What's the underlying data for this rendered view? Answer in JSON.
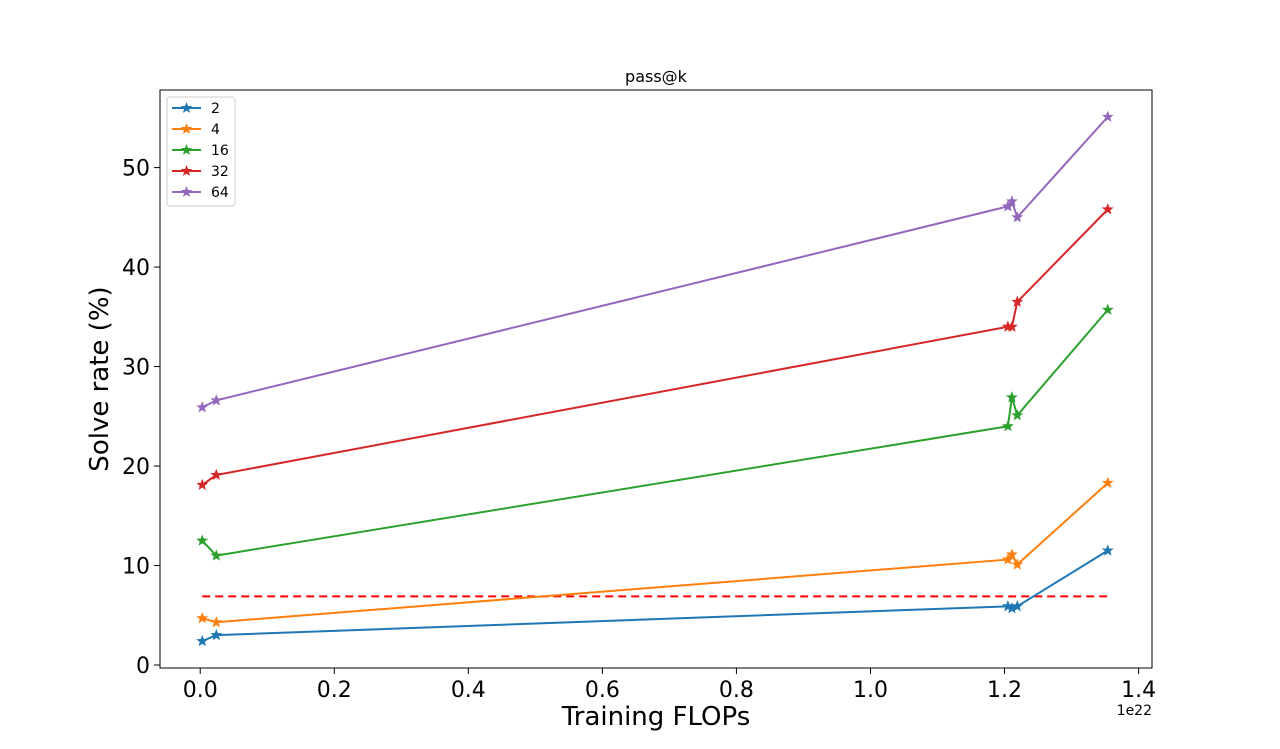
{
  "chart_data": {
    "type": "line",
    "title": "pass@k",
    "xlabel": "Training FLOPs",
    "ylabel": "Solve rate (%)",
    "x_offset_label": "1e22",
    "xlim": [
      -0.06,
      1.42
    ],
    "ylim": [
      -0.3,
      57.8
    ],
    "x_ticks": [
      0.0,
      0.2,
      0.4,
      0.6,
      0.8,
      1.0,
      1.2,
      1.4
    ],
    "x_tick_labels": [
      "0.0",
      "0.2",
      "0.4",
      "0.6",
      "0.8",
      "1.0",
      "1.2",
      "1.4"
    ],
    "y_ticks": [
      0,
      10,
      20,
      30,
      40,
      50
    ],
    "y_tick_labels": [
      "0",
      "10",
      "20",
      "30",
      "40",
      "50"
    ],
    "legend_position": "top-left",
    "series": [
      {
        "name": "2",
        "color": "#1f77b4",
        "x": [
          0.003,
          0.024,
          1.205,
          1.211,
          1.219,
          1.354
        ],
        "y": [
          2.4,
          3.0,
          5.9,
          5.7,
          5.9,
          11.5
        ]
      },
      {
        "name": "4",
        "color": "#ff7f0e",
        "x": [
          0.003,
          0.024,
          1.205,
          1.211,
          1.219,
          1.354
        ],
        "y": [
          4.7,
          4.3,
          10.6,
          11.1,
          10.1,
          18.3
        ]
      },
      {
        "name": "16",
        "color": "#2ca02c",
        "x": [
          0.003,
          0.024,
          1.205,
          1.211,
          1.219,
          1.354
        ],
        "y": [
          12.5,
          11.0,
          24.0,
          26.9,
          25.1,
          35.7
        ]
      },
      {
        "name": "32",
        "color": "#d62728",
        "x": [
          0.003,
          0.024,
          1.205,
          1.211,
          1.219,
          1.354
        ],
        "y": [
          18.1,
          19.1,
          34.0,
          34.0,
          36.5,
          45.8
        ]
      },
      {
        "name": "64",
        "color": "#9467bd",
        "x": [
          0.003,
          0.024,
          1.205,
          1.211,
          1.219,
          1.354
        ],
        "y": [
          25.9,
          26.6,
          46.1,
          46.6,
          45.0,
          55.1
        ]
      }
    ],
    "reference_line": {
      "style": "dashed",
      "color": "#ff0000",
      "x": [
        0.003,
        1.354
      ],
      "y": 6.9
    }
  }
}
